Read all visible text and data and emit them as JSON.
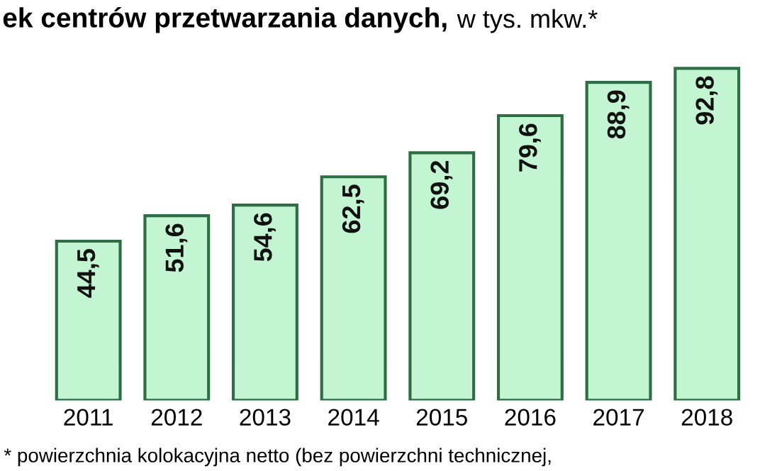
{
  "chart_data": {
    "type": "bar",
    "title": "ek centrów przetwarzania danych,",
    "subtitle": "w tys. mkw.*",
    "categories": [
      "2011",
      "2012",
      "2013",
      "2014",
      "2015",
      "2016",
      "2017",
      "2018"
    ],
    "values": [
      44.5,
      51.6,
      54.6,
      62.5,
      69.2,
      79.6,
      88.9,
      92.8
    ],
    "value_labels": [
      "44,5",
      "51,6",
      "54,6",
      "62,5",
      "69,2",
      "79,6",
      "88,9",
      "92,8"
    ],
    "color": "#c4f5d2",
    "annotations": [
      "* powierzchnia kolokacyjna netto (bez powierzchni technicznej,"
    ],
    "grid": false,
    "legend": false
  }
}
